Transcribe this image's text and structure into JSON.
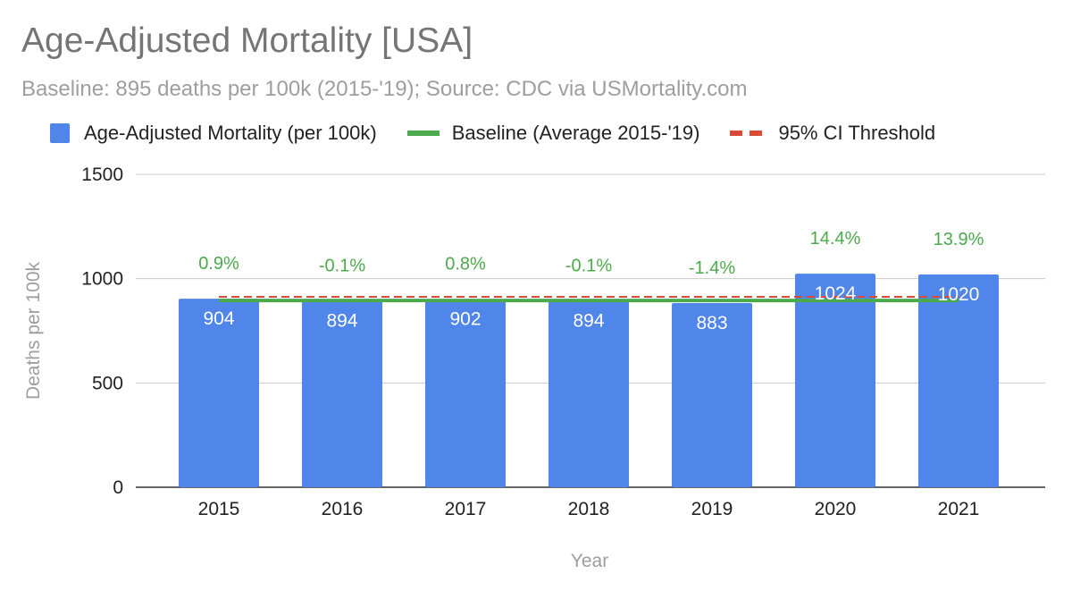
{
  "title": "Age-Adjusted Mortality [USA]",
  "subtitle": "Baseline: 895 deaths per 100k (2015-'19); Source: CDC via USMortality.com",
  "legend": {
    "bars": "Age-Adjusted Mortality (per 100k)",
    "baseline": "Baseline (Average 2015-'19)",
    "threshold": "95% CI Threshold"
  },
  "colors": {
    "bar": "#5085ea",
    "baseline": "#4caa4c",
    "threshold": "#d94a38",
    "grid": "#cccccc"
  },
  "chart_data": {
    "type": "bar",
    "categories": [
      "2015",
      "2016",
      "2017",
      "2018",
      "2019",
      "2020",
      "2021"
    ],
    "series": [
      {
        "name": "Age-Adjusted Mortality (per 100k)",
        "values": [
          904,
          894,
          902,
          894,
          883,
          1024,
          1020
        ]
      },
      {
        "name": "Baseline (Average 2015-'19)",
        "type": "line",
        "values": [
          895,
          895,
          895,
          895,
          895,
          895,
          895
        ]
      },
      {
        "name": "95% CI Threshold",
        "type": "line",
        "style": "dashed",
        "values": [
          913,
          913,
          913,
          913,
          913,
          913,
          913
        ]
      }
    ],
    "bar_labels": [
      "904",
      "894",
      "902",
      "894",
      "883",
      "1024",
      "1020"
    ],
    "pct_labels": [
      "0.9%",
      "-0.1%",
      "0.8%",
      "-0.1%",
      "-1.4%",
      "14.4%",
      "13.9%"
    ],
    "xlabel": "Year",
    "ylabel": "Deaths per 100k",
    "ylim": [
      0,
      1500
    ],
    "yticks": [
      0,
      500,
      1000,
      1500
    ],
    "ytick_labels": [
      "0",
      "500",
      "1000",
      "1500"
    ],
    "grid": true,
    "legend_position": "top"
  }
}
